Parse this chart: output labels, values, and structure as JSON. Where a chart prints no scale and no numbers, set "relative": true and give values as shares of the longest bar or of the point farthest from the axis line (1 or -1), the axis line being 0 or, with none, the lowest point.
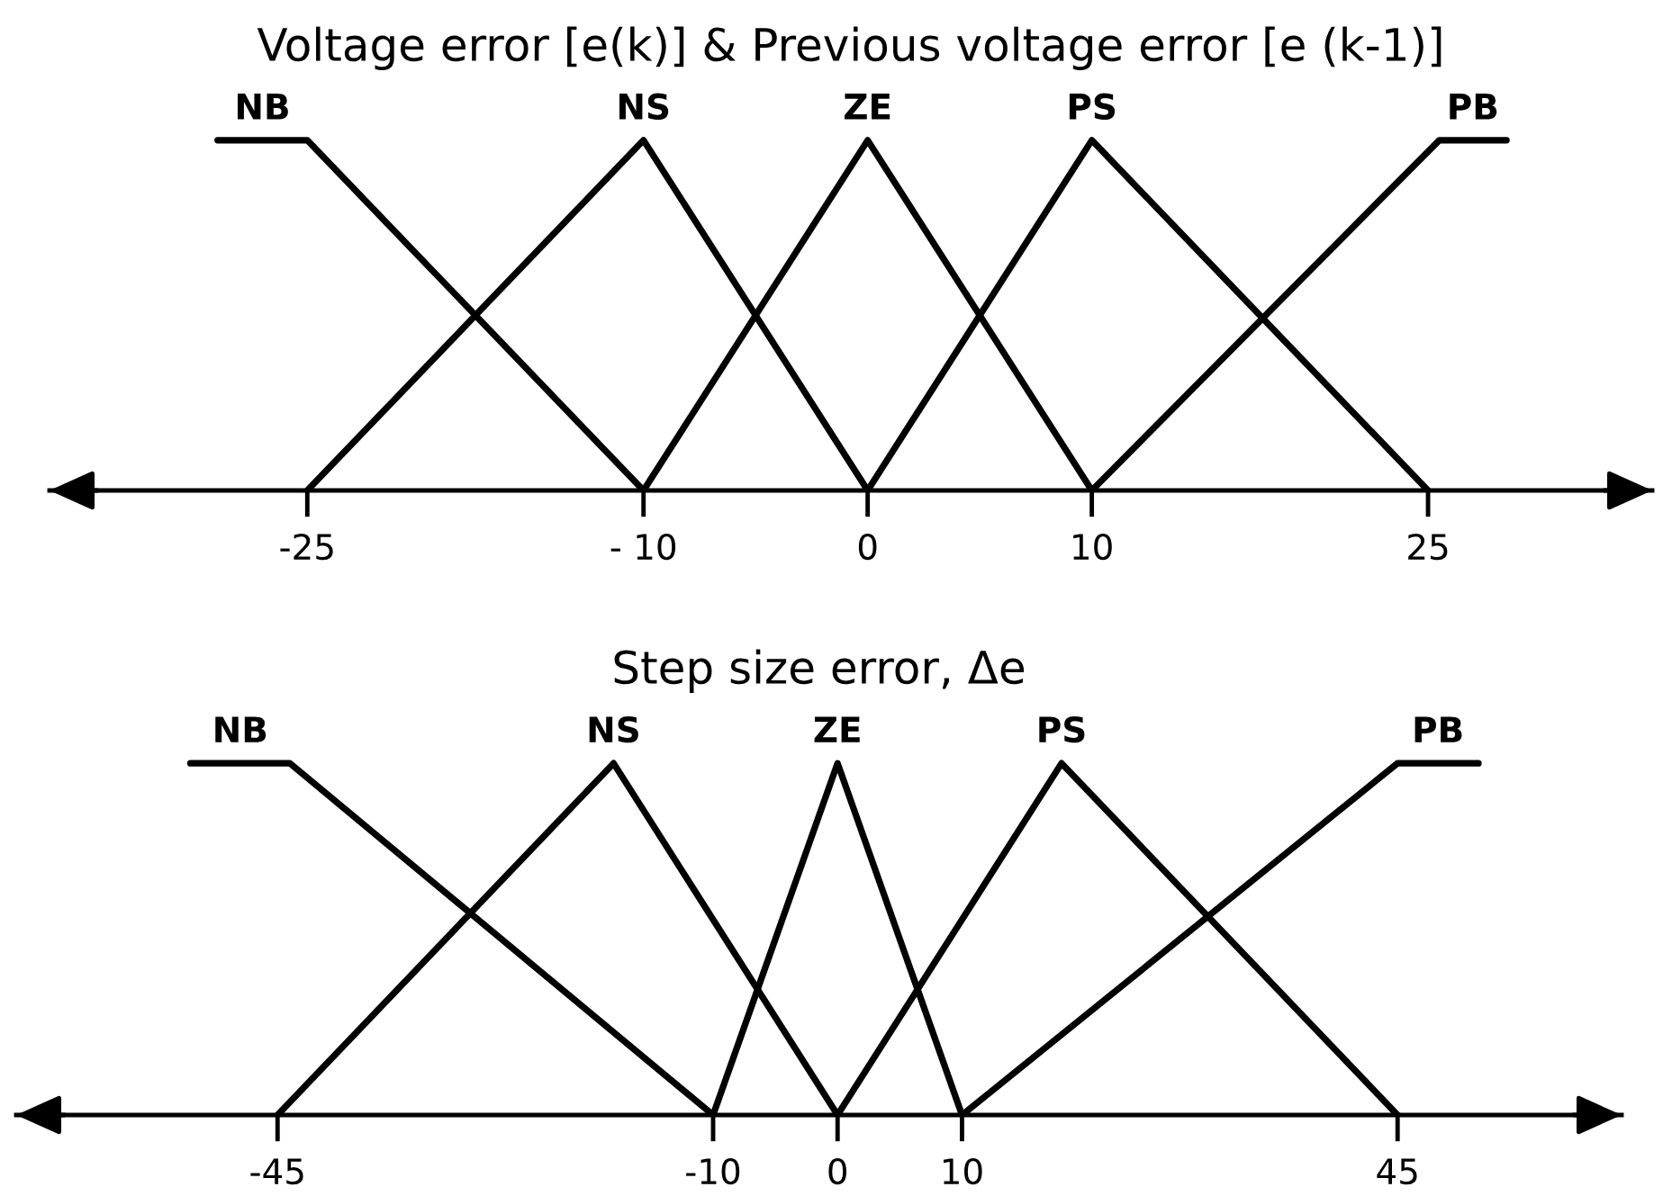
{
  "chart_data": [
    {
      "type": "line",
      "title": "Voltage error [e(k)] & Previous voltage error [e (k-1)]",
      "relative": true,
      "xlim": [
        -36.5,
        35
      ],
      "xticks": [
        -25,
        {
          "value": -10,
          "label": "- 10"
        },
        0,
        10,
        25
      ],
      "series": [
        {
          "name": "NB",
          "color": "#000000",
          "x": [
            -29,
            -25,
            -10
          ],
          "values": [
            1,
            1,
            0
          ]
        },
        {
          "name": "NS",
          "color": "#000000",
          "x": [
            -25,
            -10,
            0
          ],
          "values": [
            0,
            1,
            0
          ]
        },
        {
          "name": "ZE",
          "color": "#000000",
          "x": [
            -10,
            0,
            10
          ],
          "values": [
            0,
            1,
            0
          ]
        },
        {
          "name": "PS",
          "color": "#000000",
          "x": [
            0,
            10,
            25
          ],
          "values": [
            0,
            1,
            0
          ]
        },
        {
          "name": "PB",
          "color": "#000000",
          "x": [
            10,
            25.5,
            28.5
          ],
          "values": [
            0,
            1,
            1
          ]
        }
      ]
    },
    {
      "type": "line",
      "title": "Step size error, Δe",
      "relative": true,
      "xlim": [
        -66,
        63
      ],
      "xticks": [
        -45,
        -10,
        0,
        10,
        45
      ],
      "series": [
        {
          "name": "NB",
          "color": "#000000",
          "x": [
            -52,
            -44,
            -10
          ],
          "values": [
            1,
            1,
            0
          ]
        },
        {
          "name": "NS",
          "color": "#000000",
          "x": [
            -45,
            -18,
            0
          ],
          "values": [
            0,
            1,
            0
          ]
        },
        {
          "name": "ZE",
          "color": "#000000",
          "x": [
            -10,
            0,
            10
          ],
          "values": [
            0,
            1,
            0
          ]
        },
        {
          "name": "PS",
          "color": "#000000",
          "x": [
            0,
            18,
            45
          ],
          "values": [
            0,
            1,
            0
          ]
        },
        {
          "name": "PB",
          "color": "#000000",
          "x": [
            10,
            45,
            51.5
          ],
          "values": [
            0,
            1,
            1
          ]
        }
      ]
    }
  ]
}
